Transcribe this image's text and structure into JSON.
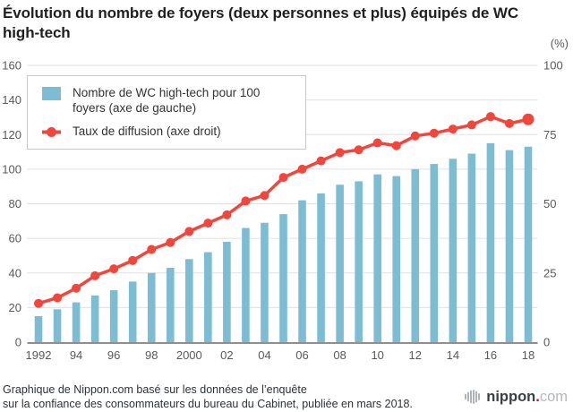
{
  "page": {
    "title": "Évolution du nombre de foyers (deux personnes et plus) équipés de WC high-tech",
    "right_axis_unit": "(%)",
    "footer_line1": "Graphique de Nippon.com basé sur les données de l’enquête",
    "footer_line2": "sur la confiance des consommateurs du bureau du Cabinet, publiée en mars 2018.",
    "logo": {
      "name": "nippon",
      "dot": ".",
      "tld": "com"
    }
  },
  "legend": {
    "series1_label": "Nombre de WC high-tech pour 100 foyers (axe de gauche)",
    "series2_label": "Taux de diffusion (axe droit)"
  },
  "colors": {
    "bar": "#7dbdd4",
    "line": "#f2453c",
    "gridline": "#e0e0e0",
    "axis_line": "#8f8f8f",
    "tick_text": "#595959"
  },
  "chart_data": {
    "type": "bar+line dual-axis",
    "title": "Évolution du nombre de foyers (deux personnes et plus) équipés de WC high-tech",
    "years": [
      1992,
      1993,
      1994,
      1995,
      1996,
      1997,
      1998,
      1999,
      2000,
      2001,
      2002,
      2003,
      2004,
      2005,
      2006,
      2007,
      2008,
      2009,
      2010,
      2011,
      2012,
      2013,
      2014,
      2015,
      2016,
      2017,
      2018
    ],
    "x_ticks": [
      {
        "label": "1992",
        "year_index": 0
      },
      {
        "label": "94",
        "year_index": 2
      },
      {
        "label": "96",
        "year_index": 4
      },
      {
        "label": "98",
        "year_index": 6
      },
      {
        "label": "2000",
        "year_index": 8
      },
      {
        "label": "02",
        "year_index": 10
      },
      {
        "label": "04",
        "year_index": 12
      },
      {
        "label": "06",
        "year_index": 14
      },
      {
        "label": "08",
        "year_index": 16
      },
      {
        "label": "10",
        "year_index": 18
      },
      {
        "label": "12",
        "year_index": 20
      },
      {
        "label": "14",
        "year_index": 22
      },
      {
        "label": "16",
        "year_index": 24
      },
      {
        "label": "18",
        "year_index": 26
      }
    ],
    "series": [
      {
        "name": "Nombre de WC high-tech pour 100 foyers (axe de gauche)",
        "type": "bar",
        "axis": "left",
        "values": [
          15,
          19,
          23,
          27,
          30,
          35,
          40,
          43,
          48,
          52,
          58,
          66,
          69,
          74,
          82,
          86,
          91,
          93,
          97,
          96,
          100,
          103,
          106,
          109,
          115,
          111,
          113
        ]
      },
      {
        "name": "Taux de diffusion (axe droit)",
        "type": "line",
        "axis": "right",
        "values": [
          14,
          16,
          19.5,
          24,
          26.5,
          29.5,
          33.5,
          36,
          40,
          43,
          46,
          51,
          53,
          59.5,
          62.5,
          65.5,
          68.5,
          69.5,
          72,
          71,
          74.5,
          75.5,
          77,
          78.5,
          81.5,
          79,
          80.5
        ]
      }
    ],
    "left_axis": {
      "range": [
        0,
        160
      ],
      "ticks": [
        0,
        20,
        40,
        60,
        80,
        100,
        120,
        140,
        160
      ]
    },
    "right_axis": {
      "range": [
        0,
        100
      ],
      "ticks": [
        0,
        25,
        50,
        75,
        100
      ],
      "unit": "(%)"
    },
    "grid": true,
    "legend_position": "top-left"
  }
}
